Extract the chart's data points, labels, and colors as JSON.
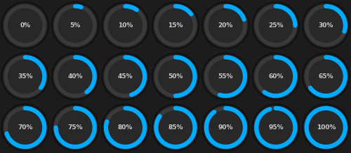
{
  "background_color": "#1c1c1c",
  "percentages": [
    0,
    5,
    10,
    15,
    20,
    25,
    30,
    35,
    40,
    45,
    50,
    55,
    60,
    65,
    70,
    75,
    80,
    85,
    90,
    95,
    100
  ],
  "cols": 7,
  "rows": 3,
  "circle_bg_color": "#2a2a2a",
  "circle_shadow_outer": "#111111",
  "circle_shadow_inner": "#1e1e1e",
  "track_color": "#3a3a3a",
  "arc_color": "#00aaff",
  "text_color": "#c8c8c8",
  "font_size": 6.5,
  "arc_linewidth": 4.5,
  "track_linewidth": 4.0,
  "fig_width": 5.0,
  "fig_height": 2.19,
  "dpi": 100
}
